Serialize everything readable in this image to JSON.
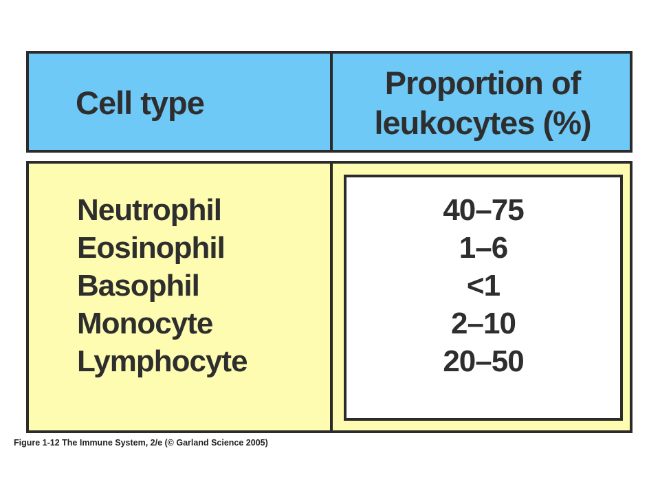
{
  "chart_data": {
    "type": "table",
    "columns": [
      "Cell type",
      "Proportion of leukocytes (%)"
    ],
    "header": {
      "col1": "Cell type",
      "col2_line1": "Proportion of",
      "col2_line2": "leukocytes (%)"
    },
    "rows": [
      {
        "cell_type": "Neutrophil",
        "proportion": "40–75"
      },
      {
        "cell_type": "Eosinophil",
        "proportion": "1–6"
      },
      {
        "cell_type": "Basophil",
        "proportion": "<1"
      },
      {
        "cell_type": "Monocyte",
        "proportion": "2–10"
      },
      {
        "cell_type": "Lymphocyte",
        "proportion": "20–50"
      }
    ],
    "colors": {
      "header_bg": "#6ec9f7",
      "body_bg": "#fefcb0",
      "value_panel_bg": "#ffffff",
      "border": "#2b2b2b",
      "text": "#2e2e2e"
    }
  },
  "caption": "Figure 1-12 The Immune System, 2/e (© Garland Science 2005)"
}
